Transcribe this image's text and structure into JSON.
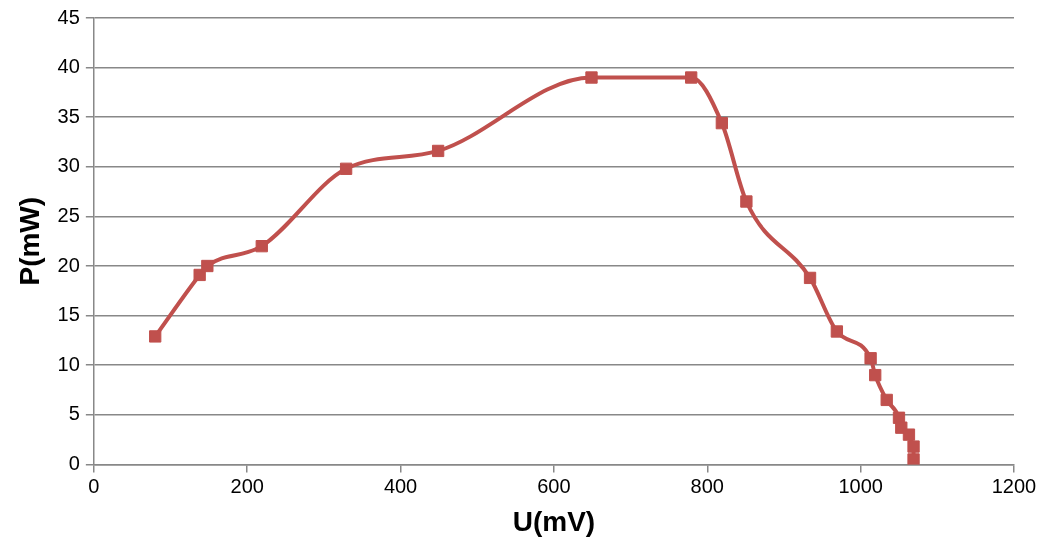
{
  "chart_data": {
    "type": "line",
    "xlabel": "U(mV)",
    "ylabel": "P(mW)",
    "x": [
      80,
      138,
      148,
      219,
      329,
      449,
      649,
      779,
      819,
      851,
      934,
      969,
      1013,
      1019,
      1034,
      1050,
      1053,
      1063,
      1069,
      1069
    ],
    "series": [
      {
        "color": "#c0504d",
        "values": [
          12.9,
          19.1,
          20.0,
          22.0,
          29.8,
          31.6,
          39.0,
          39.0,
          34.4,
          26.5,
          18.8,
          13.4,
          10.7,
          9.0,
          6.5,
          4.7,
          3.7,
          3.0,
          1.8,
          0.5
        ]
      }
    ],
    "xlim": [
      0,
      1200
    ],
    "xticks": [
      0,
      200,
      400,
      600,
      800,
      1000,
      1200
    ],
    "ylim": [
      0,
      45
    ],
    "yticks": [
      0,
      5,
      10,
      15,
      20,
      25,
      30,
      35,
      40,
      45
    ],
    "grid": "y",
    "legend": false,
    "marker": "square",
    "line_style": "solid"
  }
}
